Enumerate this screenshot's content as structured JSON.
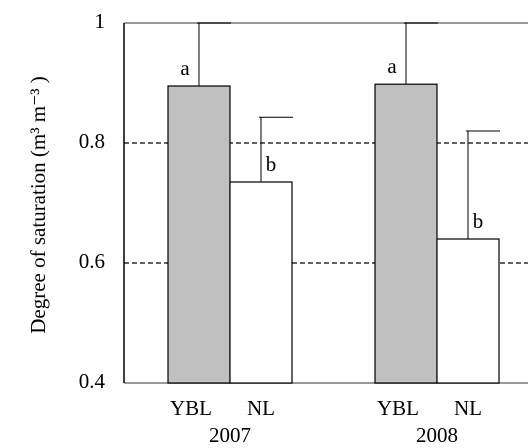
{
  "chart_data": {
    "type": "bar",
    "y_label": "Degree of saturation (m³ m⁻³ )",
    "groups": [
      "2007",
      "2008"
    ],
    "series": [
      {
        "name": "YBL",
        "color": "#c0c0c0",
        "values": [
          0.895,
          0.898
        ],
        "errors": [
          0.105,
          0.102
        ],
        "annotations": [
          "a",
          "a"
        ]
      },
      {
        "name": "NL",
        "color": "#ffffff",
        "values": [
          0.735,
          0.64
        ],
        "errors": [
          0.108,
          0.18
        ],
        "annotations": [
          "b",
          "b"
        ]
      }
    ],
    "ylim": [
      0.4,
      1
    ],
    "yticks": [
      0.4,
      0.6,
      0.8,
      1
    ],
    "grid": true
  }
}
